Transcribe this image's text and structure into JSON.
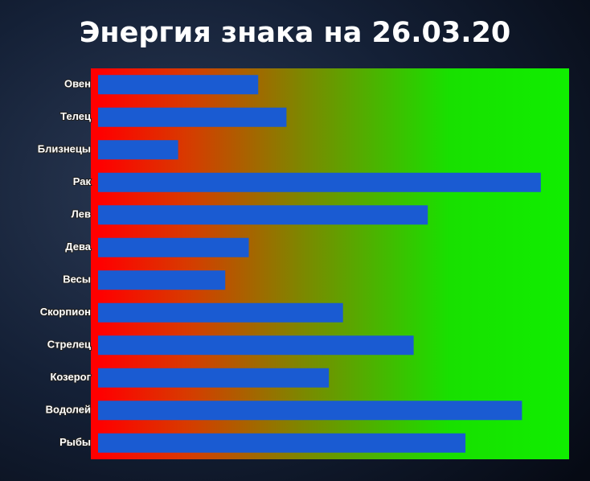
{
  "chart_data": {
    "type": "barh",
    "title": "Энергия знака на 26.03.20",
    "categories": [
      "Овен",
      "Телец",
      "Близнецы",
      "Рак",
      "Лев",
      "Дева",
      "Весы",
      "Скорпион",
      "Стрелец",
      "Козерог",
      "Водолей",
      "Рыбы"
    ],
    "values": [
      34,
      40,
      17,
      94,
      70,
      32,
      27,
      52,
      67,
      49,
      90,
      78
    ],
    "color": "#1a5bd2",
    "xlim": [
      0,
      100
    ]
  }
}
